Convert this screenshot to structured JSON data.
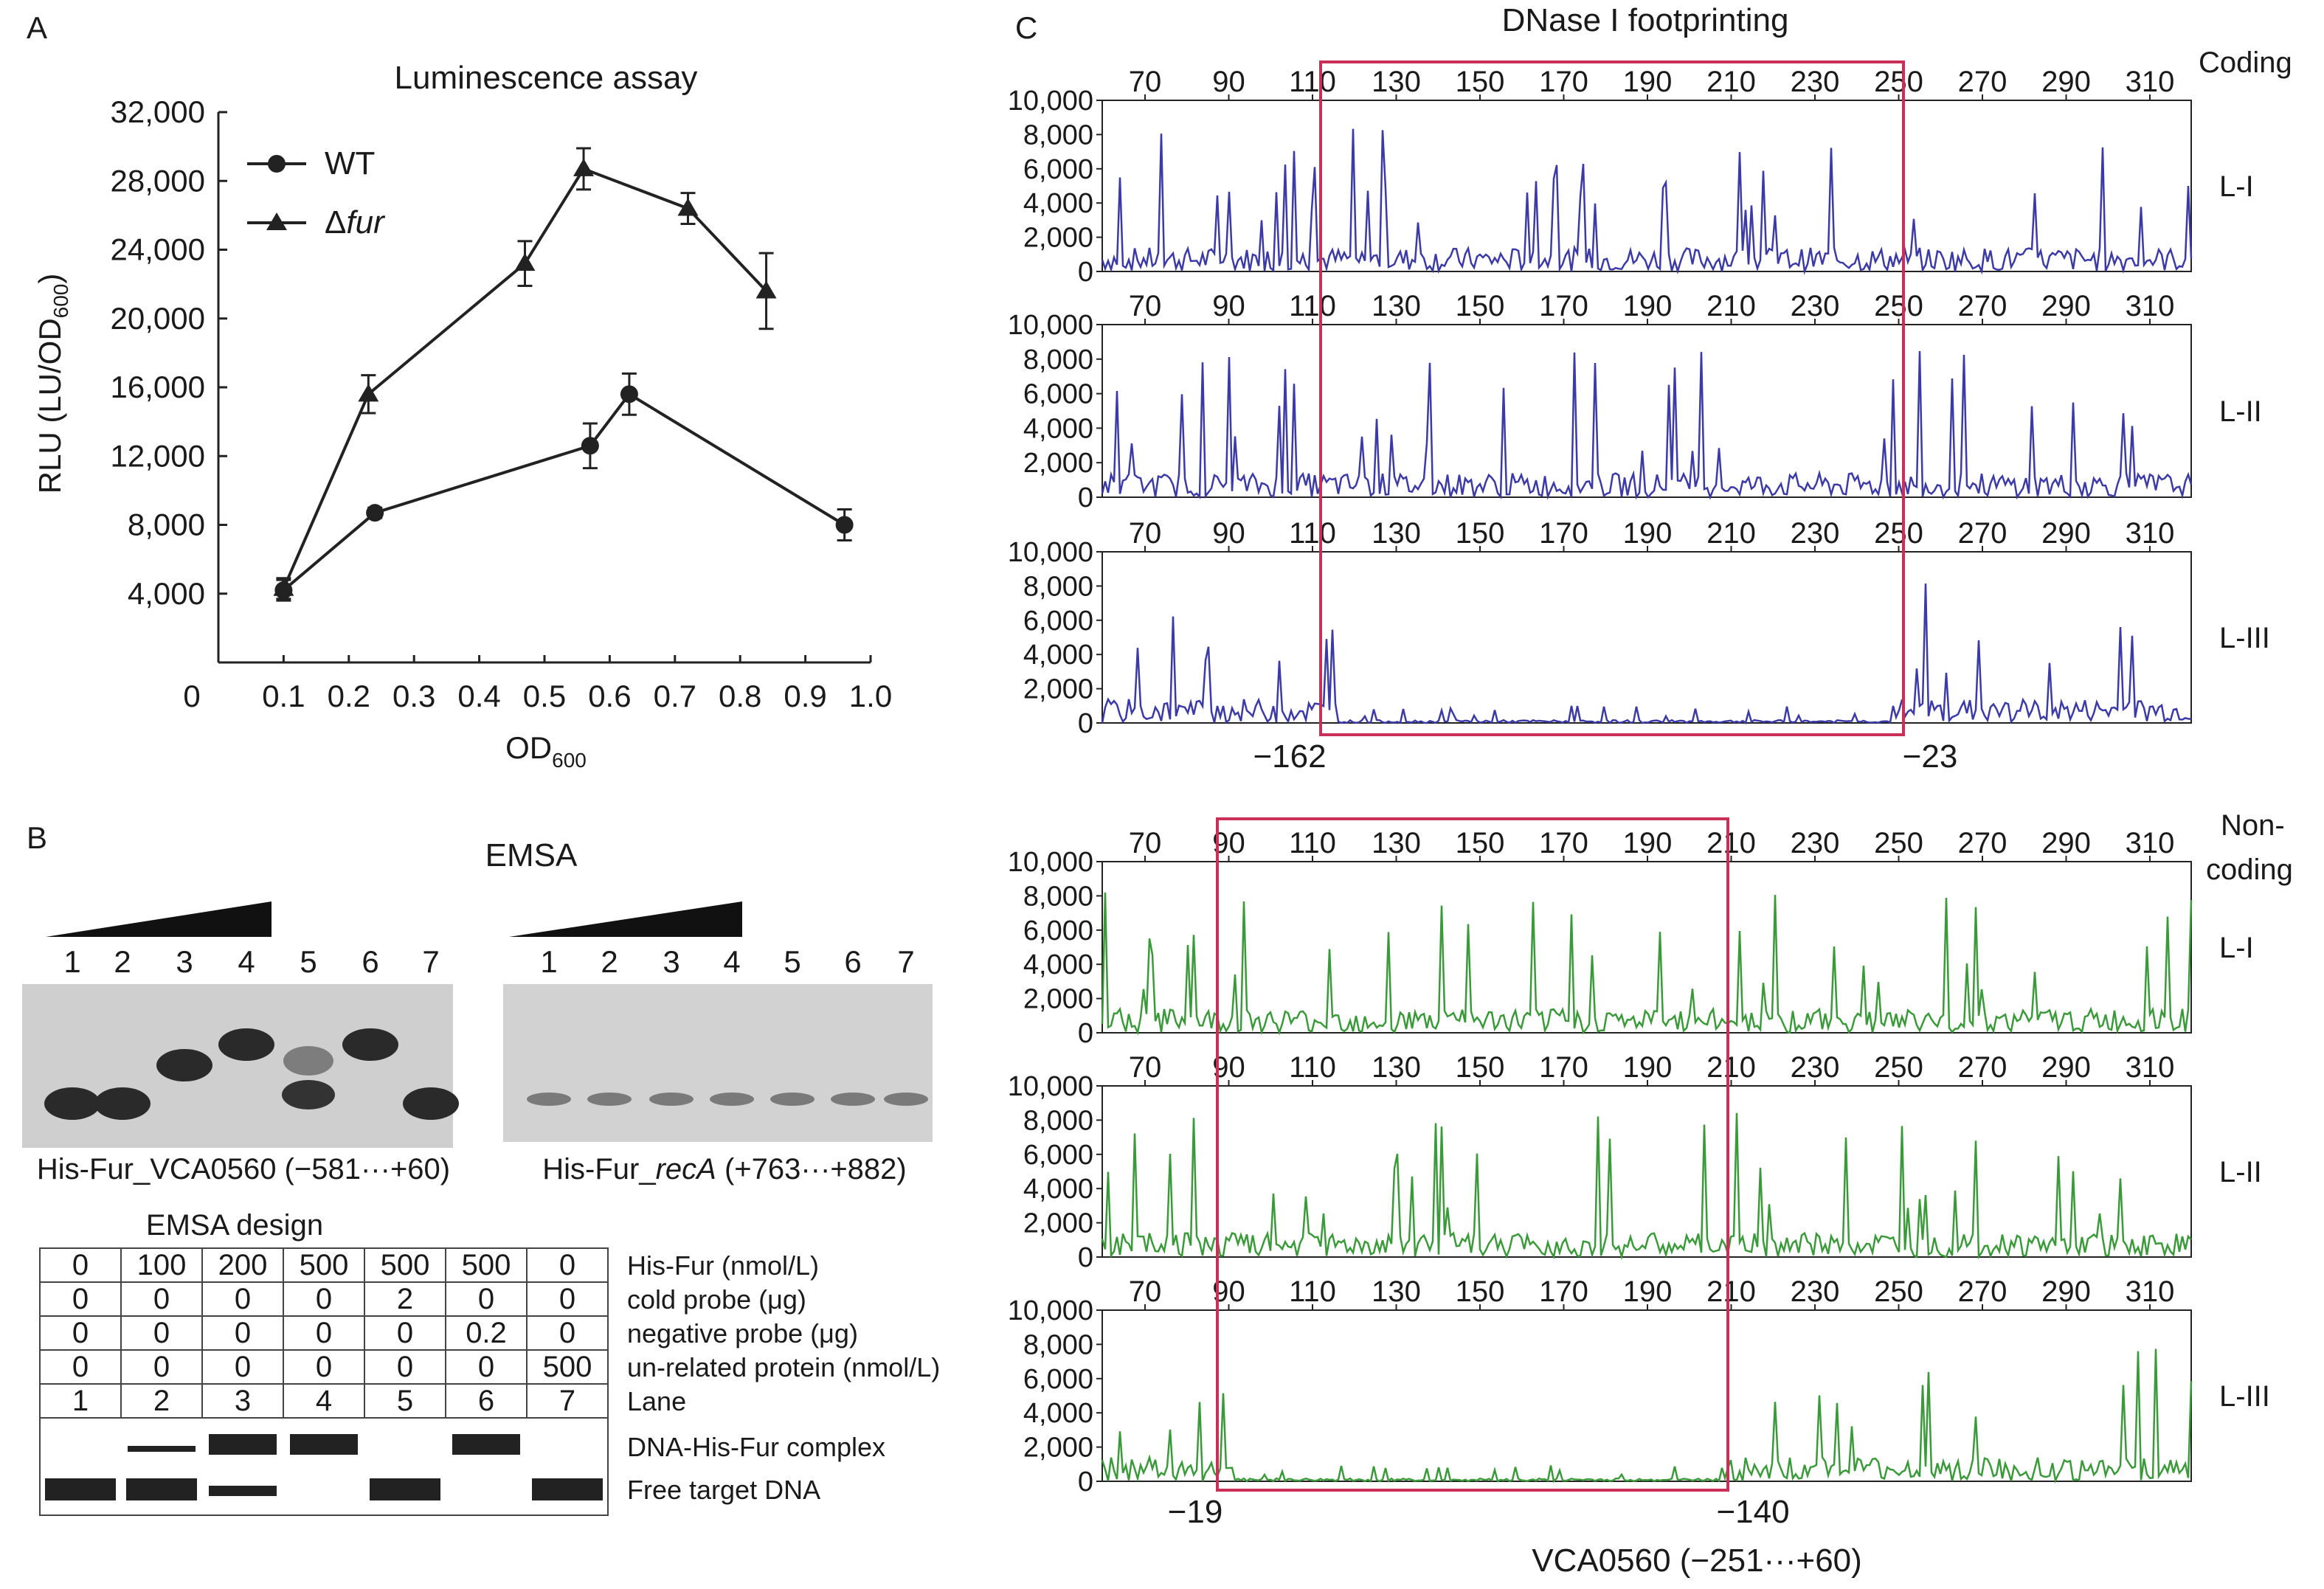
{
  "panels": {
    "a": {
      "letter": "A",
      "title": "Luminescence assay",
      "ylabel": "RLU (LU/OD",
      "ylabel_sub": "600",
      "ylabel_end": ")",
      "xlabel": "OD",
      "xlabel_sub": "600",
      "legend": [
        {
          "label": "WT",
          "marker": "circle"
        },
        {
          "label_prefix": "Δ",
          "label_italic": "fur",
          "marker": "triangle"
        }
      ]
    },
    "b": {
      "letter": "B",
      "title": "EMSA",
      "gel1": {
        "lanes": [
          "1",
          "2",
          "3",
          "4",
          "5",
          "6",
          "7"
        ],
        "caption": "His-Fur_VCA0560 (−581···+60)",
        "bands": [
          {
            "lane": 1,
            "level": "low"
          },
          {
            "lane": 2,
            "level": "low"
          },
          {
            "lane": 3,
            "level": "high"
          },
          {
            "lane": 4,
            "level": "top"
          },
          {
            "lane": 5,
            "level": "mixed"
          },
          {
            "lane": 6,
            "level": "top"
          },
          {
            "lane": 7,
            "level": "low"
          }
        ]
      },
      "gel2": {
        "lanes": [
          "1",
          "2",
          "3",
          "4",
          "5",
          "6",
          "7"
        ],
        "caption_prefix": "His-Fur_",
        "caption_italic": "recA",
        "caption_suffix": " (+763···+882)"
      },
      "design_title": "EMSA design",
      "design_rows": [
        {
          "values": [
            "0",
            "100",
            "200",
            "500",
            "500",
            "500",
            "0"
          ],
          "label": "His-Fur (nmol/L)"
        },
        {
          "values": [
            "0",
            "0",
            "0",
            "0",
            "2",
            "0",
            "0"
          ],
          "label": "cold probe (μg)"
        },
        {
          "values": [
            "0",
            "0",
            "0",
            "0",
            "0",
            "0.2",
            "0"
          ],
          "label": "negative probe (μg)"
        },
        {
          "values": [
            "0",
            "0",
            "0",
            "0",
            "0",
            "0",
            "500"
          ],
          "label": "un-related protein (nmol/L)"
        },
        {
          "values": [
            "1",
            "2",
            "3",
            "4",
            "5",
            "6",
            "7"
          ],
          "label": "Lane"
        }
      ],
      "complex_label": "DNA-His-Fur complex",
      "free_label": "Free target DNA"
    },
    "c": {
      "letter": "C",
      "title": "DNase I footprinting",
      "coding_label": "Coding",
      "noncoding_label_1": "Non-",
      "noncoding_label_2": "coding",
      "coding_boundaries": [
        "−162",
        "−23"
      ],
      "noncoding_boundaries": [
        "−19",
        "−140"
      ],
      "xlabel": "VCA0560 (−251···+60)",
      "colors": {
        "coding": "#3b3aa6",
        "noncoding": "#3a9a3a",
        "box": "#c8305a"
      }
    }
  },
  "chart_data": [
    {
      "type": "line",
      "title": "Luminescence assay",
      "xlabel": "OD600",
      "ylabel": "RLU (LU/OD600)",
      "xlim": [
        0,
        1.0
      ],
      "ylim": [
        0,
        32000
      ],
      "xticks": [
        "0",
        "0.1",
        "0.2",
        "0.3",
        "0.4",
        "0.5",
        "0.6",
        "0.7",
        "0.8",
        "0.9",
        "1.0"
      ],
      "yticks": [
        "4,000",
        "8,000",
        "12,000",
        "16,000",
        "20,000",
        "24,000",
        "28,000",
        "32,000"
      ],
      "series": [
        {
          "name": "WT",
          "marker": "circle",
          "x": [
            0.1,
            0.24,
            0.57,
            0.63,
            0.96
          ],
          "y": [
            4200,
            8700,
            12600,
            15600,
            8000
          ],
          "err": [
            600,
            300,
            1300,
            1200,
            900
          ]
        },
        {
          "name": "Δfur",
          "marker": "triangle",
          "x": [
            0.1,
            0.23,
            0.47,
            0.56,
            0.72,
            0.84
          ],
          "y": [
            4300,
            15600,
            23200,
            28700,
            26400,
            21600
          ],
          "err": [
            600,
            1100,
            1300,
            1200,
            900,
            2200
          ]
        }
      ]
    },
    {
      "type": "line",
      "title": "DNase I footprinting",
      "xticks": [
        "70",
        "90",
        "110",
        "130",
        "150",
        "170",
        "190",
        "210",
        "230",
        "250",
        "270",
        "290",
        "310"
      ],
      "yticks": [
        "0",
        "2,000",
        "4,000",
        "6,000",
        "8,000",
        "10,000"
      ],
      "ylim": [
        0,
        10000
      ],
      "traces": [
        {
          "strand": "coding",
          "label": "L-I",
          "protected": false
        },
        {
          "strand": "coding",
          "label": "L-II",
          "protected": false
        },
        {
          "strand": "coding",
          "label": "L-III",
          "protected": true
        },
        {
          "strand": "noncoding",
          "label": "L-I",
          "protected": false
        },
        {
          "strand": "noncoding",
          "label": "L-II",
          "protected": false
        },
        {
          "strand": "noncoding",
          "label": "L-III",
          "protected": true
        }
      ]
    }
  ]
}
